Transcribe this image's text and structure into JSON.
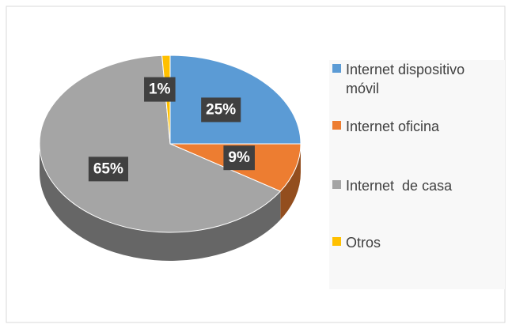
{
  "chart_data": {
    "type": "pie",
    "three_d": true,
    "categories": [
      "Internet dispositivo móvil",
      "Internet oficina",
      "Internet  de casa",
      "Otros"
    ],
    "values": [
      25,
      9,
      65,
      1
    ],
    "value_labels": [
      "25%",
      "9%",
      "65%",
      "1%"
    ],
    "colors": [
      "#5b9bd5",
      "#ed7d31",
      "#a5a5a5",
      "#ffc000"
    ],
    "legend": "right"
  }
}
